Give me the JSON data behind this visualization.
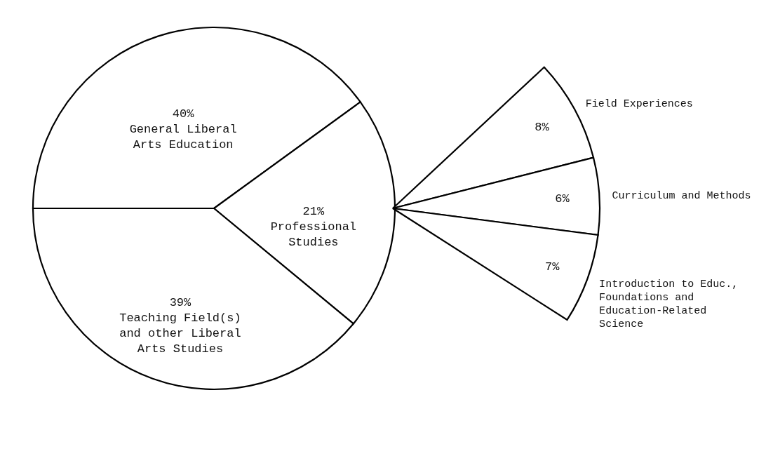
{
  "chart_data": [
    {
      "type": "pie",
      "categories": [
        "General Liberal Arts Education",
        "Professional Studies",
        "Teaching Field(s) and other Liberal Arts Studies"
      ],
      "values": [
        40,
        21,
        39
      ],
      "value_labels": [
        "40%",
        "21%",
        "39%"
      ],
      "colors": [
        "#ffffff",
        "#ffffff",
        "#ffffff"
      ]
    },
    {
      "type": "pie",
      "categories": [
        "Field Experiences",
        "Curriculum and Methods",
        "Introduction to Educ., Foundations and Education-Related Science"
      ],
      "values": [
        8,
        6,
        7
      ],
      "value_labels": [
        "8%",
        "6%",
        "7%"
      ],
      "colors": [
        "#ffffff",
        "#ffffff",
        "#ffffff"
      ]
    }
  ]
}
